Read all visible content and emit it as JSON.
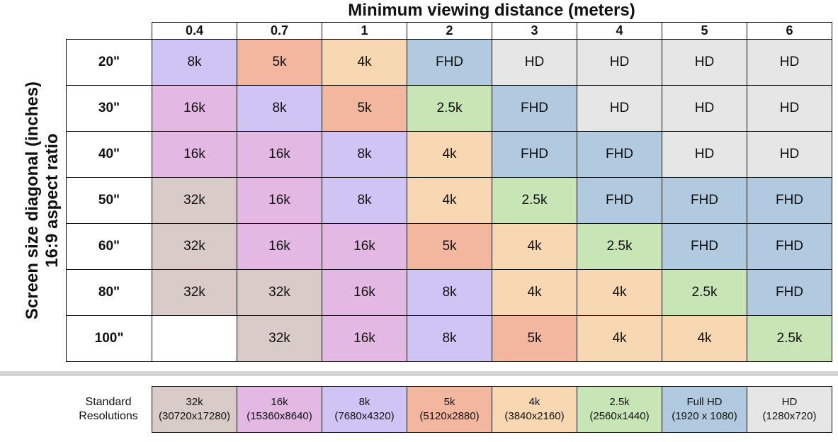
{
  "chart_data": {
    "type": "table",
    "x_title": "Minimum viewing distance (meters)",
    "y_title_lines": [
      "Screen size diagonal (inches)",
      "16:9 aspect ratio"
    ],
    "columns": [
      "0.4",
      "0.7",
      "1",
      "2",
      "3",
      "4",
      "5",
      "6"
    ],
    "rows": [
      {
        "label": "20\"",
        "values": [
          "8k",
          "5k",
          "4k",
          "FHD",
          "HD",
          "HD",
          "HD",
          "HD"
        ]
      },
      {
        "label": "30\"",
        "values": [
          "16k",
          "8k",
          "5k",
          "2.5k",
          "FHD",
          "HD",
          "HD",
          "HD"
        ]
      },
      {
        "label": "40\"",
        "values": [
          "16k",
          "16k",
          "8k",
          "4k",
          "FHD",
          "FHD",
          "HD",
          "HD"
        ]
      },
      {
        "label": "50\"",
        "values": [
          "32k",
          "16k",
          "8k",
          "4k",
          "2.5k",
          "FHD",
          "FHD",
          "FHD"
        ]
      },
      {
        "label": "60\"",
        "values": [
          "32k",
          "16k",
          "16k",
          "5k",
          "4k",
          "2.5k",
          "FHD",
          "FHD"
        ]
      },
      {
        "label": "80\"",
        "values": [
          "32k",
          "32k",
          "16k",
          "8k",
          "4k",
          "4k",
          "2.5k",
          "FHD"
        ]
      },
      {
        "label": "100\"",
        "values": [
          "",
          "32k",
          "16k",
          "8k",
          "5k",
          "4k",
          "4k",
          "2.5k"
        ]
      }
    ],
    "legend_title_lines": [
      "Standard",
      "Resolutions"
    ],
    "legend": [
      {
        "key": "32k",
        "name": "32k",
        "detail": "(30720x17280)",
        "color": "#d9cbc7"
      },
      {
        "key": "16k",
        "name": "16k",
        "detail": "(15360x8640)",
        "color": "#e3b8e3"
      },
      {
        "key": "8k",
        "name": "8k",
        "detail": "(7680x4320)",
        "color": "#d0c4f4"
      },
      {
        "key": "5k",
        "name": "5k",
        "detail": "(5120x2880)",
        "color": "#f3b7a0"
      },
      {
        "key": "4k",
        "name": "4k",
        "detail": "(3840x2160)",
        "color": "#f7d8b3"
      },
      {
        "key": "2.5k",
        "name": "2.5k",
        "detail": "(2560x1440)",
        "color": "#c8e5b5"
      },
      {
        "key": "FHD",
        "name": "Full HD",
        "detail": "(1920 x 1080)",
        "color": "#b2cae0"
      },
      {
        "key": "HD",
        "name": "HD",
        "detail": "(1280x720)",
        "color": "#e6e6e6"
      }
    ],
    "empty_color": "#ffffff"
  }
}
